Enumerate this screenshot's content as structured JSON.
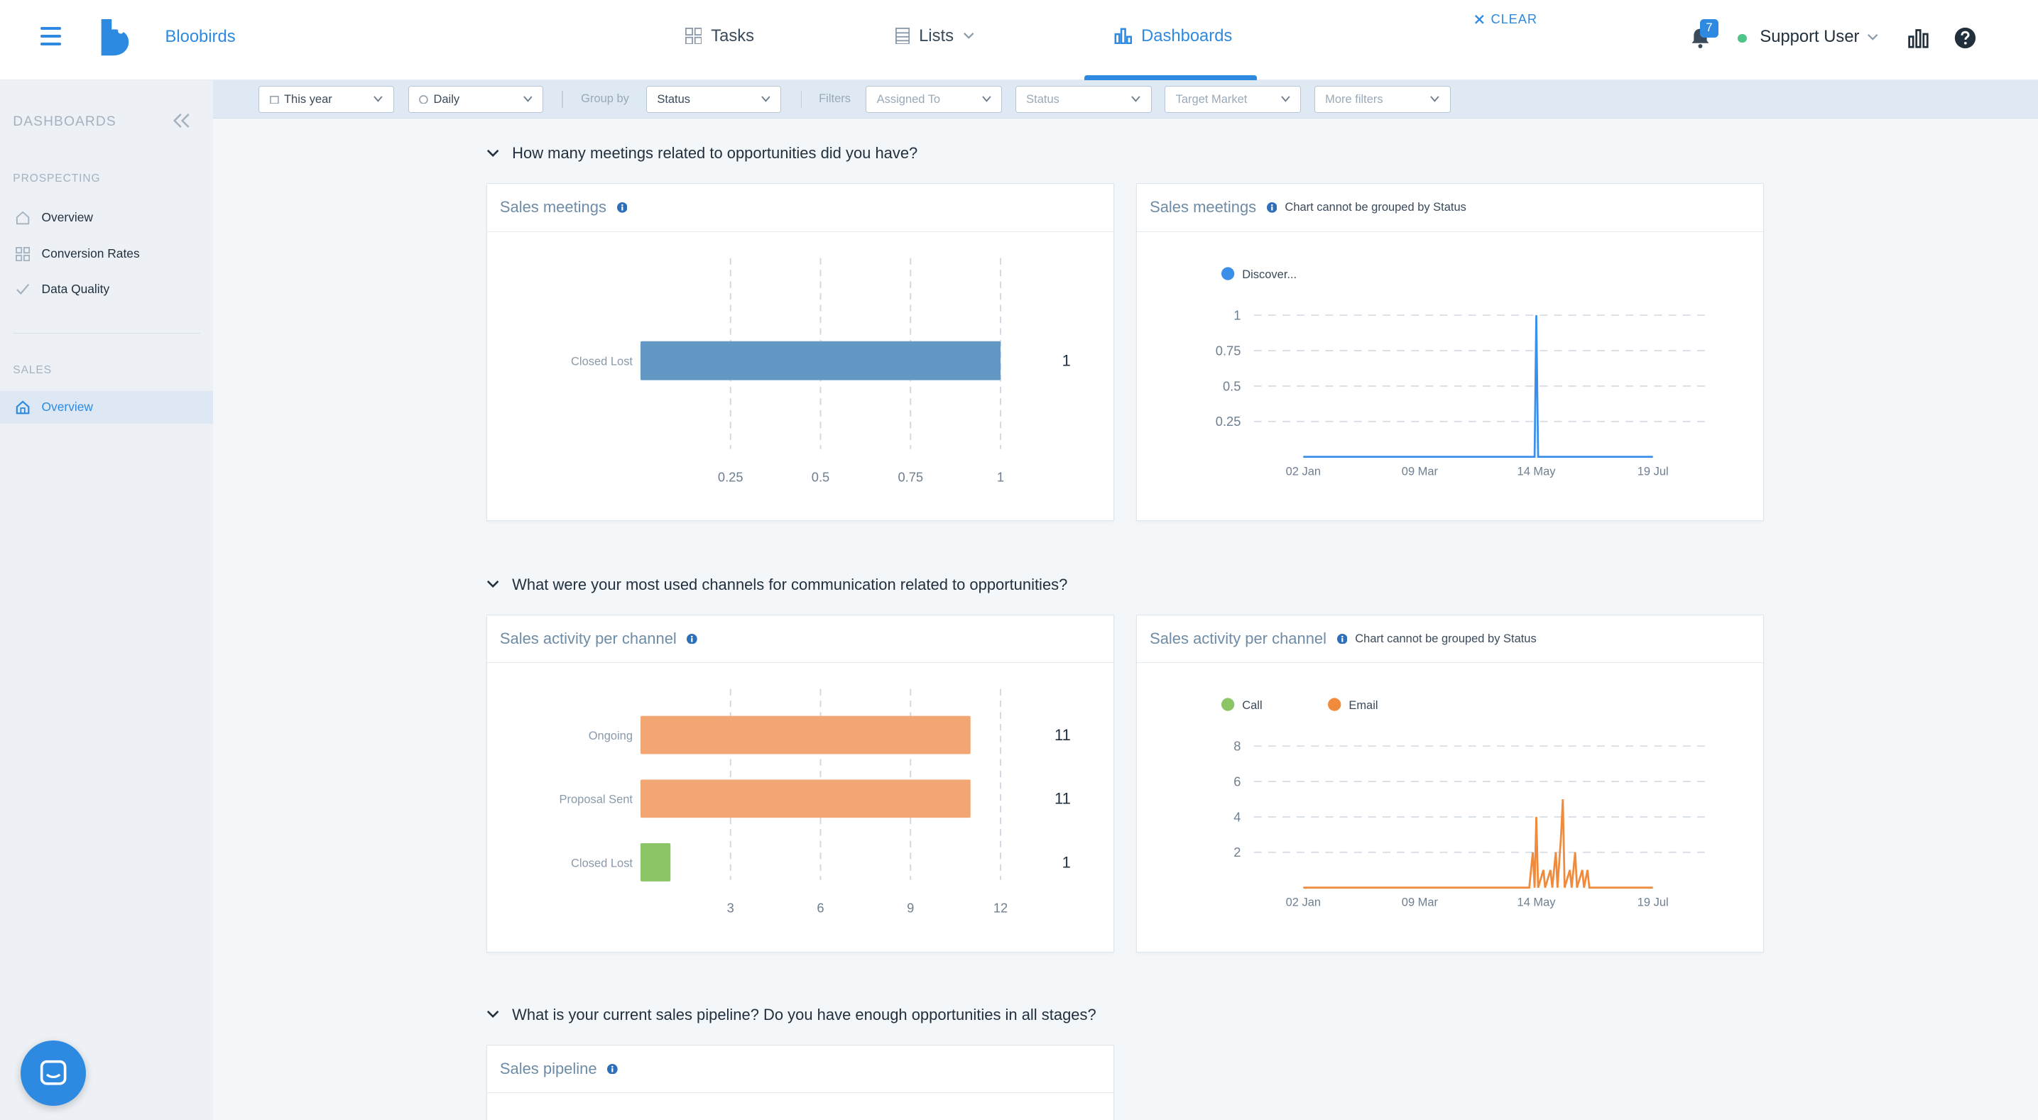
{
  "app": {
    "brand": "Bloobirds"
  },
  "nav": {
    "tasks": "Tasks",
    "lists": "Lists",
    "dashboards": "Dashboards"
  },
  "header": {
    "notifications_count": "7",
    "user_name": "Support User"
  },
  "sidebar": {
    "title": "DASHBOARDS",
    "prospecting_label": "PROSPECTING",
    "prospecting_items": [
      "Overview",
      "Conversion Rates",
      "Data Quality"
    ],
    "sales_label": "SALES",
    "sales_items": [
      "Overview"
    ]
  },
  "filters": {
    "date_range": "This year",
    "granularity": "Daily",
    "group_by_label": "Group by",
    "group_by_value": "Status",
    "filters_label": "Filters",
    "assigned_to": "Assigned To",
    "status": "Status",
    "target_market": "Target Market",
    "more_filters": "More filters",
    "clear": "CLEAR"
  },
  "sections": [
    {
      "question": "How many meetings related to opportunities did you have?"
    },
    {
      "question": "What were your most used channels for communication related to opportunities?"
    },
    {
      "question": "What is your current sales pipeline? Do you have enough opportunities in all stages?"
    }
  ],
  "cards": {
    "meetings_bar_title": "Sales meetings",
    "meetings_line_title": "Sales meetings",
    "meetings_line_note": "Chart cannot be grouped by Status",
    "activity_bar_title": "Sales activity per channel",
    "activity_line_title": "Sales activity per channel",
    "activity_line_note": "Chart cannot be grouped by Status",
    "pipeline_title": "Sales pipeline"
  },
  "colors": {
    "accent": "#2d8ae0",
    "bar_blue": "#6398c4",
    "orange": "#f2a674",
    "green": "#8bc565",
    "line_orange": "#f08a3c",
    "line_blue": "#3b8fe8"
  },
  "chart_data": [
    {
      "type": "bar",
      "title": "Sales meetings",
      "orientation": "horizontal",
      "categories": [
        "Closed Lost"
      ],
      "values": [
        1
      ],
      "xticks": [
        0.25,
        0.5,
        0.75,
        1
      ],
      "xlim": [
        0,
        1
      ]
    },
    {
      "type": "line",
      "title": "Sales meetings",
      "series": [
        {
          "name": "Discover...",
          "points": [
            [
              "02 Jan",
              0
            ],
            [
              "13 May",
              0
            ],
            [
              "14 May",
              1
            ],
            [
              "15 May",
              0
            ],
            [
              "19 Jul",
              0
            ]
          ]
        }
      ],
      "xticks": [
        "02 Jan",
        "09 Mar",
        "14 May",
        "19 Jul"
      ],
      "yticks": [
        0.25,
        0.5,
        0.75,
        1
      ],
      "ylim": [
        0,
        1
      ]
    },
    {
      "type": "bar",
      "title": "Sales activity per channel",
      "orientation": "horizontal",
      "categories": [
        "Ongoing",
        "Proposal Sent",
        "Closed Lost"
      ],
      "values": [
        11,
        11,
        1
      ],
      "xticks": [
        3,
        6,
        9,
        12
      ],
      "xlim": [
        0,
        12
      ]
    },
    {
      "type": "line",
      "title": "Sales activity per channel",
      "series": [
        {
          "name": "Call",
          "points": []
        },
        {
          "name": "Email",
          "points": [
            [
              "02 Jan",
              0
            ],
            [
              "10 May",
              0
            ],
            [
              "12 May",
              2
            ],
            [
              "13 May",
              0
            ],
            [
              "14 May",
              4
            ],
            [
              "15 May",
              0
            ],
            [
              "18 May",
              1
            ],
            [
              "19 May",
              0
            ],
            [
              "22 May",
              1
            ],
            [
              "23 May",
              0
            ],
            [
              "25 May",
              2
            ],
            [
              "26 May",
              0
            ],
            [
              "28 May",
              3
            ],
            [
              "29 May",
              5
            ],
            [
              "30 May",
              0
            ],
            [
              "02 Jun",
              1
            ],
            [
              "03 Jun",
              0
            ],
            [
              "05 Jun",
              2
            ],
            [
              "06 Jun",
              0
            ],
            [
              "09 Jun",
              1
            ],
            [
              "10 Jun",
              0
            ],
            [
              "12 Jun",
              1
            ],
            [
              "13 Jun",
              0
            ],
            [
              "19 Jul",
              0
            ]
          ]
        }
      ],
      "xticks": [
        "02 Jan",
        "09 Mar",
        "14 May",
        "19 Jul"
      ],
      "yticks": [
        2,
        4,
        6,
        8
      ],
      "ylim": [
        0,
        8
      ]
    }
  ]
}
